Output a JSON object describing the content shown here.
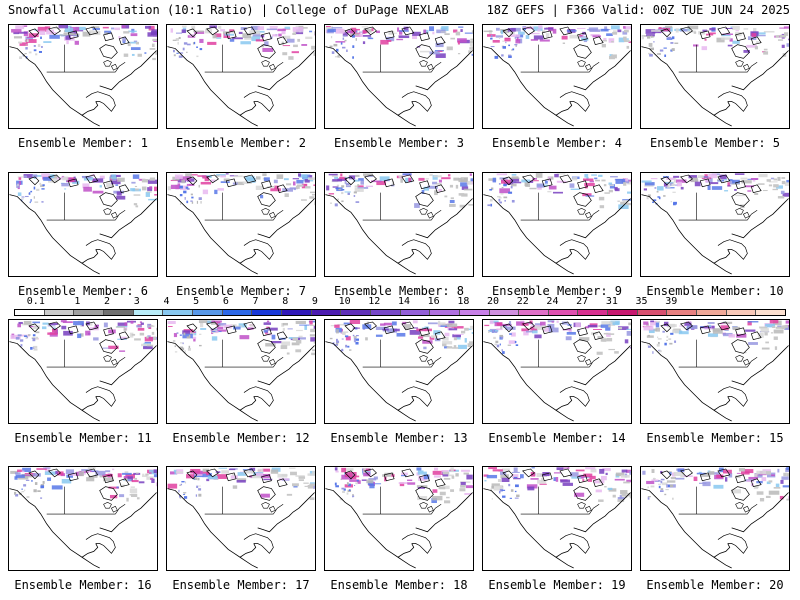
{
  "header": {
    "left": "Snowfall Accumulation (10:1 Ratio) | College of DuPage NEXLAB",
    "right": "18Z GEFS | F366 Valid: 00Z TUE JUN 24 2025"
  },
  "legend": {
    "ticks": [
      "0.1",
      "1",
      "2",
      "3",
      "4",
      "5",
      "6",
      "7",
      "8",
      "9",
      "10",
      "12",
      "14",
      "16",
      "18",
      "20",
      "22",
      "24",
      "27",
      "31",
      "35",
      "39"
    ],
    "colors": [
      "#ffffff",
      "#cccccc",
      "#a0a0a0",
      "#707070",
      "#b8ecf8",
      "#88c8f0",
      "#5898e8",
      "#2c68e8",
      "#1838d8",
      "#3018b8",
      "#4c1cb0",
      "#6030b8",
      "#7848c8",
      "#9460d8",
      "#b070e0",
      "#c880e8",
      "#d090e0",
      "#e070c8",
      "#e050b0",
      "#d83090",
      "#c81870",
      "#d85070",
      "#e88080",
      "#f0a898",
      "#f8c8b8",
      "#fce0d0"
    ]
  },
  "members": [
    "Ensemble Member: 1",
    "Ensemble Member: 2",
    "Ensemble Member: 3",
    "Ensemble Member: 4",
    "Ensemble Member: 5",
    "Ensemble Member: 6",
    "Ensemble Member: 7",
    "Ensemble Member: 8",
    "Ensemble Member: 9",
    "Ensemble Member: 10",
    "Ensemble Member: 11",
    "Ensemble Member: 12",
    "Ensemble Member: 13",
    "Ensemble Member: 14",
    "Ensemble Member: 15",
    "Ensemble Member: 16",
    "Ensemble Member: 17",
    "Ensemble Member: 18",
    "Ensemble Member: 19",
    "Ensemble Member: 20"
  ]
}
